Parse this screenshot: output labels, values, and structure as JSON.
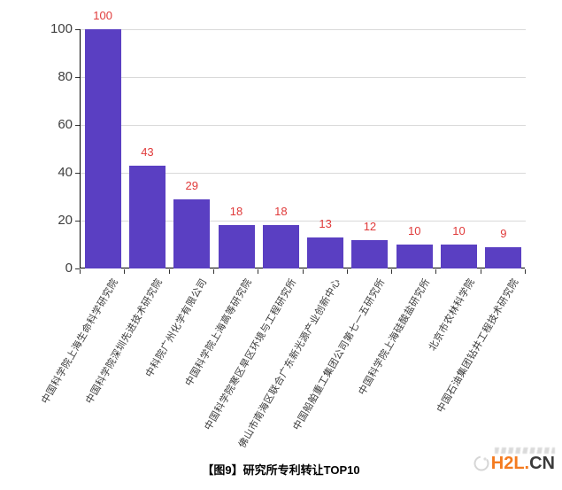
{
  "chart_data": {
    "type": "bar",
    "title": "【图9】研究所专利转让TOP10",
    "categories": [
      "中国科学院上海生命科学研究院",
      "中国科学院深圳先进技术研究院",
      "中科院广州化学有限公司",
      "中国科学院上海高等研究院",
      "中国科学院寒区旱区环境与工程研究所",
      "佛山市南海区联合广东新光源产业创新中心",
      "中国船舶重工集团公司第七一五研究所",
      "中国科学院上海硅酸盐研究所",
      "北京市农林科学院",
      "中国石油集团钻井工程技术研究院"
    ],
    "values": [
      100,
      43,
      29,
      18,
      18,
      13,
      12,
      10,
      10,
      9
    ],
    "xlabel": "",
    "ylabel": "",
    "ylim": [
      0,
      100
    ],
    "yticks": [
      0,
      20,
      40,
      60,
      80,
      100
    ],
    "grid": true,
    "legend_position": "none",
    "x_label_rotation_deg": -60,
    "colors": {
      "bar": "#5A3FC2",
      "value_label": "#E03A3A",
      "axis_line": "#000000",
      "axis_text": "#404040",
      "x_label_text": "#3A3A3A",
      "gridline": "#D9D9D9"
    }
  },
  "footer": {
    "logo": {
      "primary": "H2L",
      "dot": ".",
      "suffix": "CN",
      "primary_color": "#F47B20",
      "suffix_color": "#3A3A3A"
    }
  }
}
